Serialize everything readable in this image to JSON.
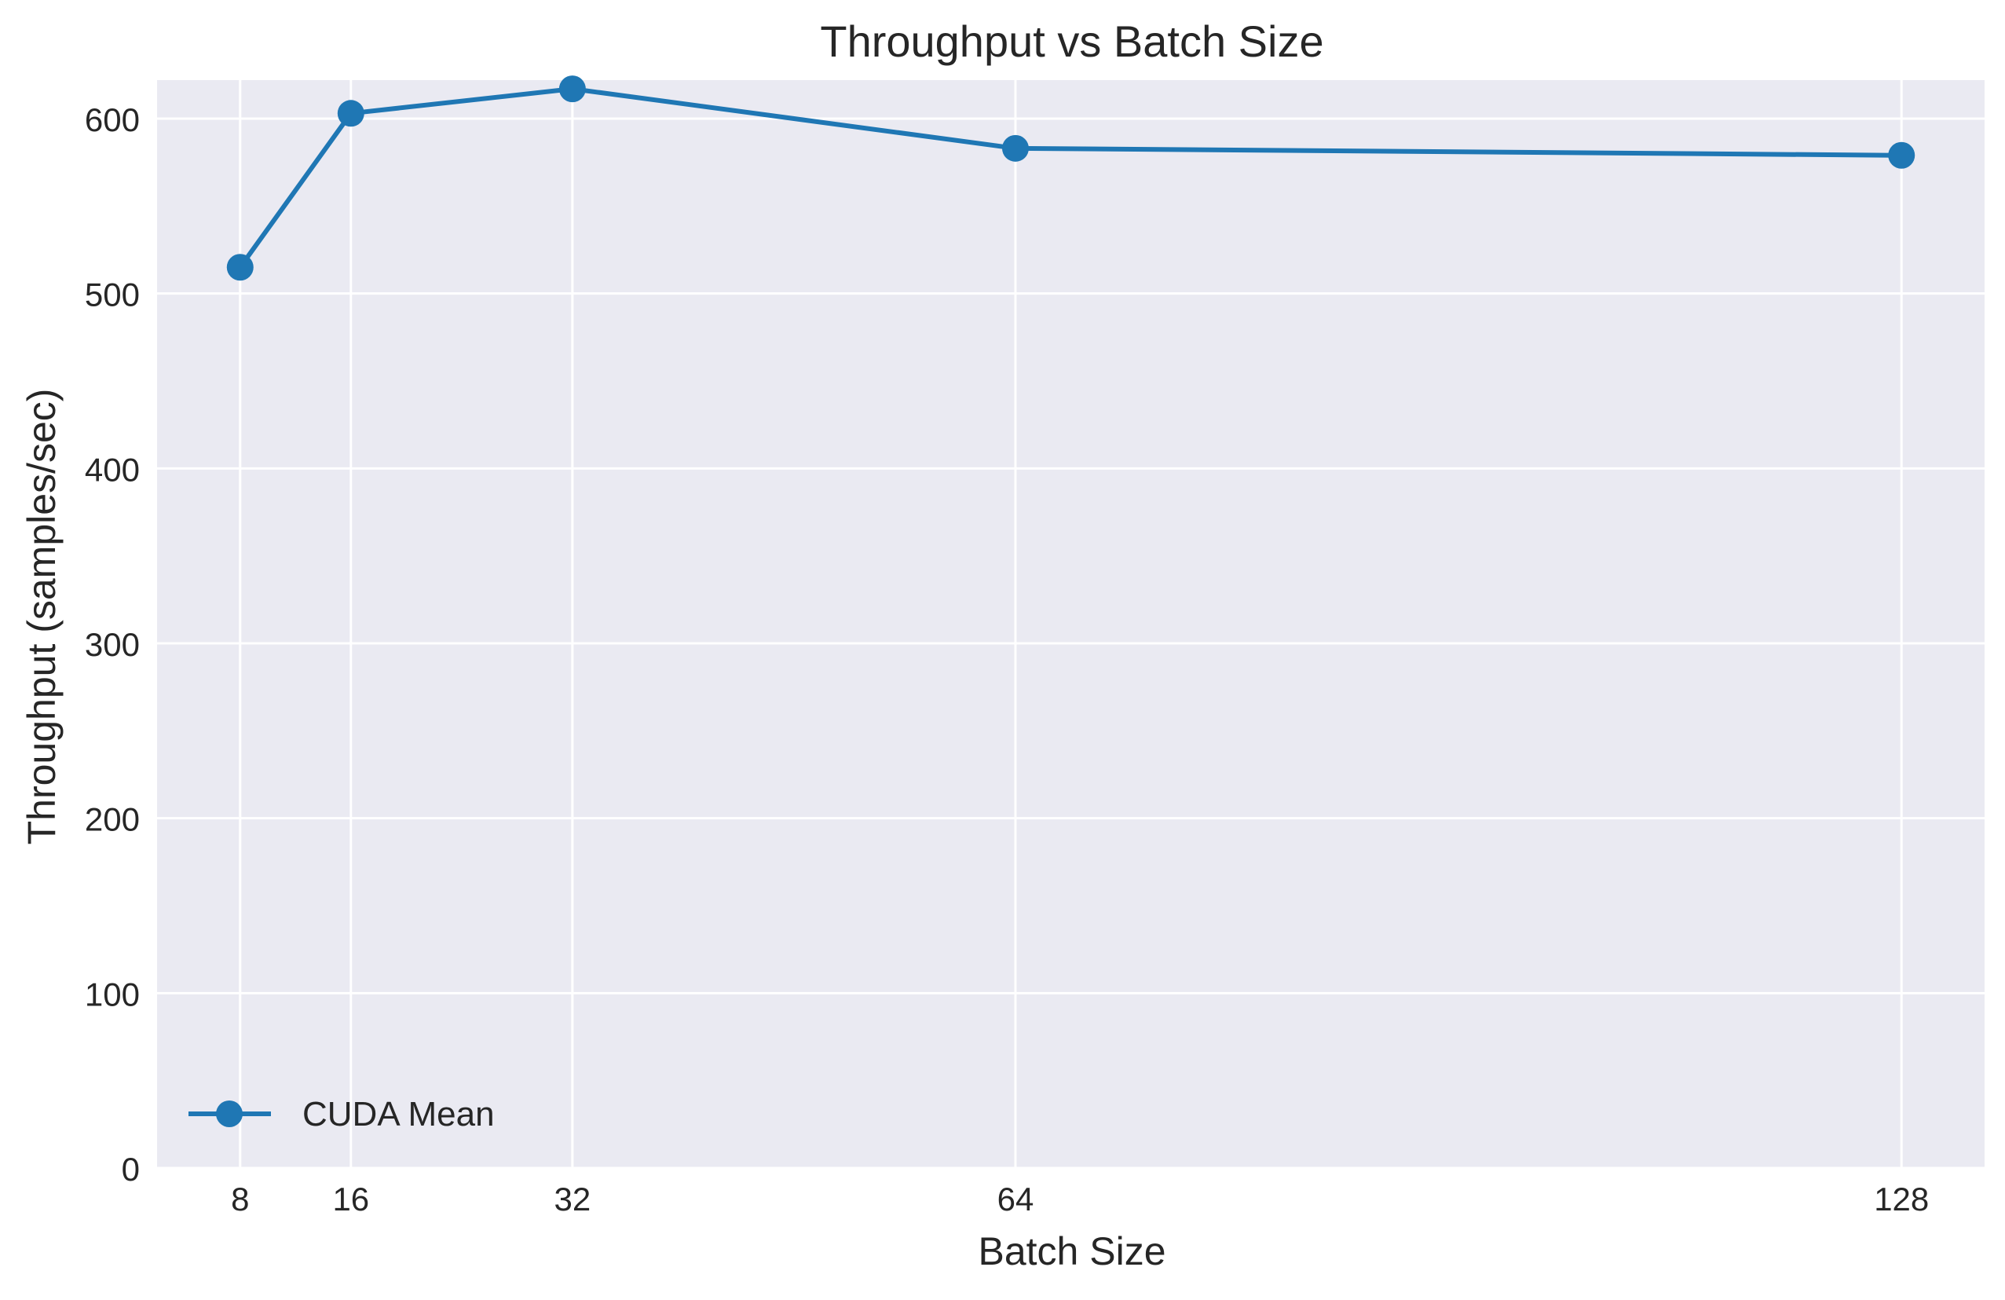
{
  "chart_data": {
    "type": "line",
    "title": "Throughput vs Batch Size",
    "xlabel": "Batch Size",
    "ylabel": "Throughput (samples/sec)",
    "x": [
      8,
      16,
      32,
      64,
      128
    ],
    "series": [
      {
        "name": "CUDA Mean",
        "values": [
          515,
          603,
          617,
          583,
          579
        ]
      }
    ],
    "xticks": [
      8,
      16,
      32,
      64,
      128
    ],
    "yticks": [
      0,
      100,
      200,
      300,
      400,
      500,
      600
    ],
    "xlim": [
      2,
      134
    ],
    "ylim": [
      0,
      622
    ],
    "grid": true,
    "legend": "lower-left",
    "colors": {
      "series": "#1f77b4",
      "plot_background": "#eaeaf2",
      "grid": "#ffffff"
    }
  }
}
